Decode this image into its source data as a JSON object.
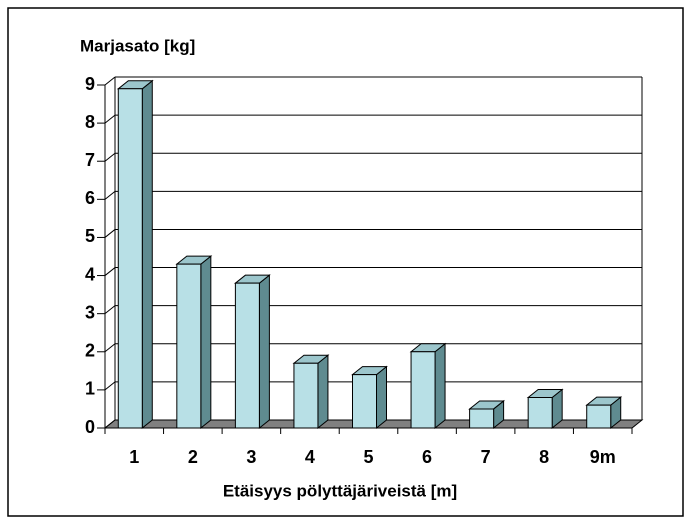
{
  "chart_data": {
    "type": "bar3d",
    "title": "Marjasato [kg]",
    "x_label": "Etäisyys pölyttäjäriveistä [m]",
    "categories": [
      "1",
      "2",
      "3",
      "4",
      "5",
      "6",
      "7",
      "8",
      "9m"
    ],
    "values": [
      8.9,
      4.3,
      3.8,
      1.7,
      1.4,
      2.0,
      0.5,
      0.8,
      0.6
    ],
    "color": "#b8e0e6",
    "ylim": [
      0,
      9
    ],
    "yticks": [
      0,
      1,
      2,
      3,
      4,
      5,
      6,
      7,
      8,
      9
    ],
    "grid": true
  }
}
